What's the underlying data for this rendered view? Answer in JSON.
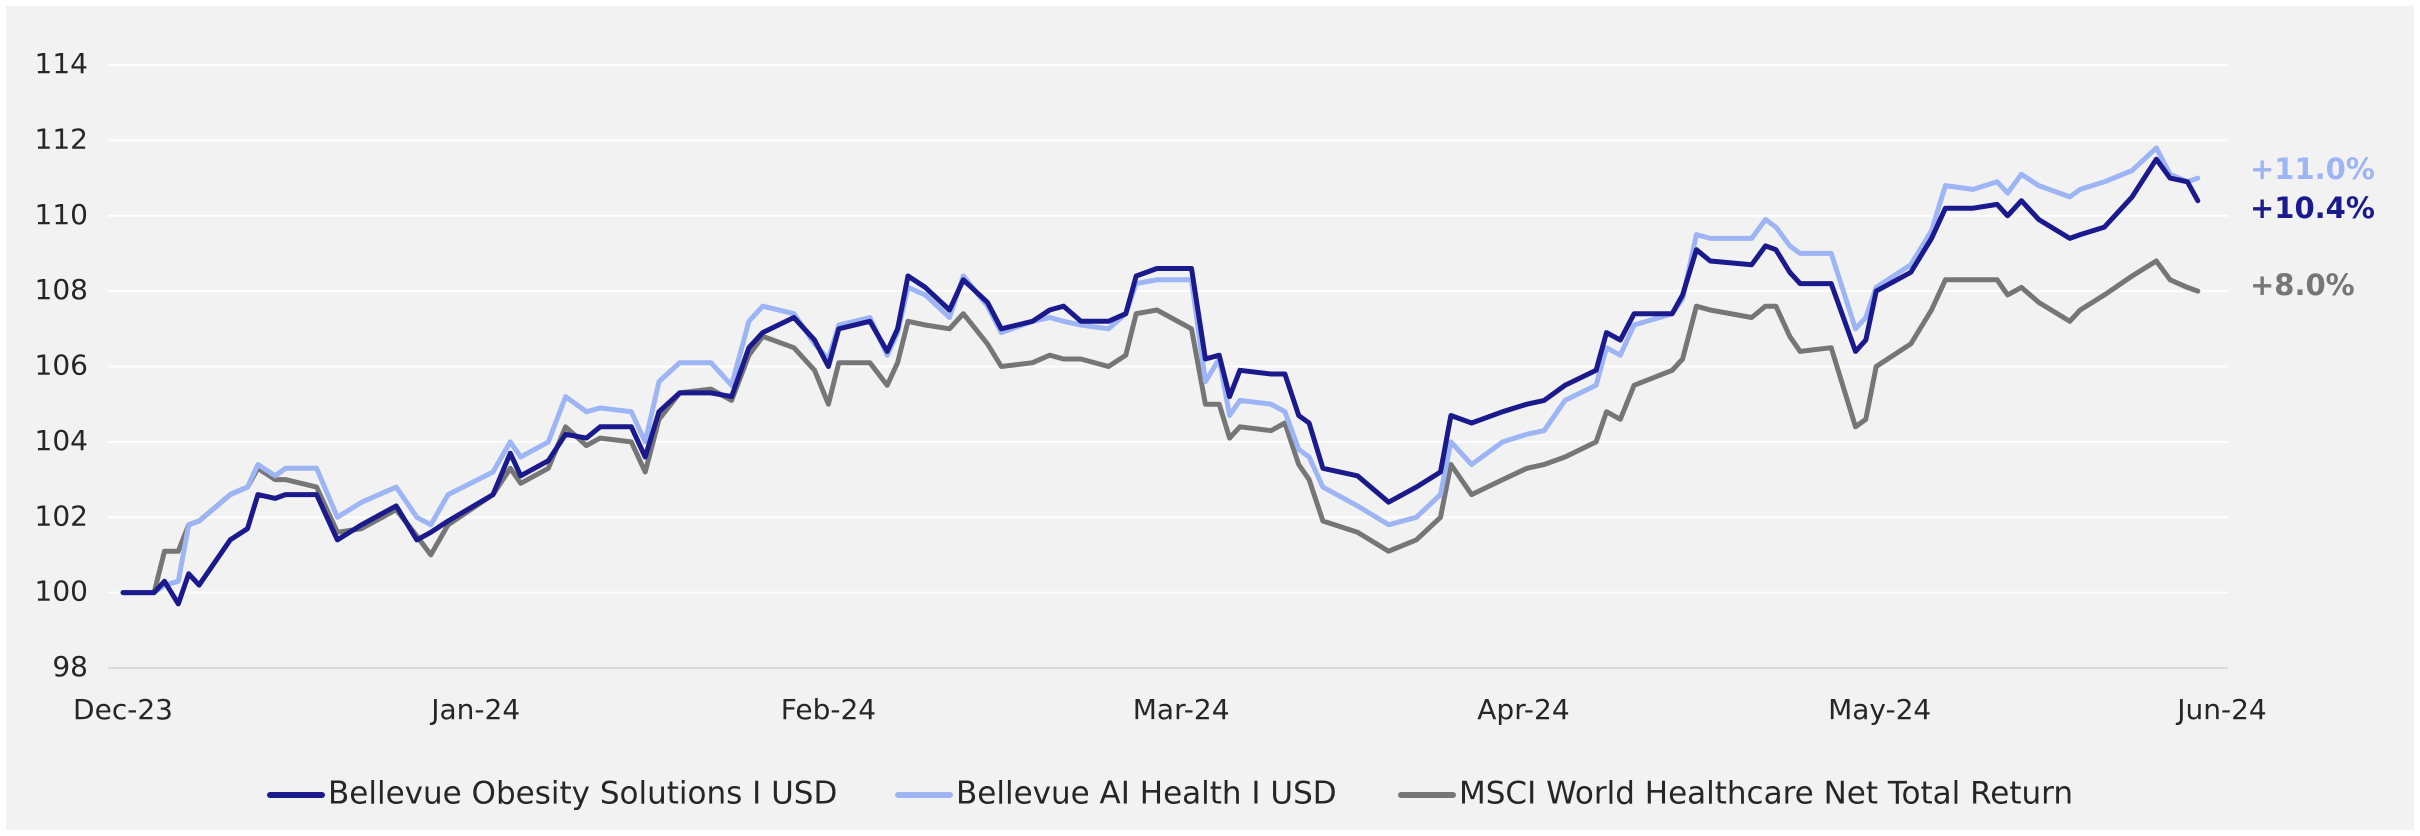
{
  "chart_data": {
    "type": "line",
    "x": [
      0,
      0.09,
      0.12,
      0.16,
      0.19,
      0.22,
      0.31,
      0.36,
      0.39,
      0.44,
      0.47,
      0.56,
      0.62,
      0.69,
      0.79,
      0.85,
      0.89,
      0.94,
      1.07,
      1.12,
      1.15,
      1.23,
      1.28,
      1.34,
      1.38,
      1.47,
      1.51,
      1.55,
      1.61,
      1.7,
      1.76,
      1.81,
      1.85,
      1.94,
      2.0,
      2.04,
      2.07,
      2.16,
      2.21,
      2.24,
      2.27,
      2.32,
      2.39,
      2.43,
      2.5,
      2.54,
      2.63,
      2.68,
      2.72,
      2.77,
      2.85,
      2.9,
      2.93,
      2.99,
      3.09,
      3.13,
      3.17,
      3.2,
      3.23,
      3.32,
      3.36,
      3.4,
      3.43,
      3.47,
      3.57,
      3.66,
      3.74,
      3.81,
      3.84,
      3.9,
      3.99,
      4.06,
      4.11,
      4.17,
      4.26,
      4.29,
      4.33,
      4.37,
      4.48,
      4.51,
      4.55,
      4.59,
      4.71,
      4.75,
      4.78,
      4.82,
      4.85,
      4.94,
      5.01,
      5.04,
      5.07,
      5.17,
      5.23,
      5.27,
      5.35,
      5.42,
      5.45,
      5.49,
      5.54,
      5.63,
      5.66,
      5.73,
      5.81,
      5.88,
      5.92,
      5.97,
      6.0
    ],
    "series": [
      {
        "name": "MSCI World Healthcare Net Total Return",
        "color": "#767676",
        "end_label": "+8.0%",
        "values": [
          100,
          100,
          101.1,
          101.1,
          101.8,
          101.9,
          102.6,
          102.8,
          103.3,
          103.0,
          103.0,
          102.8,
          101.6,
          101.7,
          102.2,
          101.5,
          101.0,
          101.8,
          102.6,
          103.3,
          102.9,
          103.3,
          104.4,
          103.9,
          104.1,
          104.0,
          103.2,
          104.6,
          105.3,
          105.4,
          105.1,
          106.3,
          106.8,
          106.5,
          105.9,
          105.0,
          106.1,
          106.1,
          105.5,
          106.1,
          107.2,
          107.1,
          107.0,
          107.4,
          106.6,
          106.0,
          106.1,
          106.3,
          106.2,
          106.2,
          106.0,
          106.3,
          107.4,
          107.5,
          107.0,
          105.0,
          105.0,
          104.1,
          104.4,
          104.3,
          104.5,
          103.4,
          103.0,
          101.9,
          101.6,
          101.1,
          101.4,
          102.0,
          103.4,
          102.6,
          103.0,
          103.3,
          103.4,
          103.6,
          104.0,
          104.8,
          104.6,
          105.5,
          105.9,
          106.2,
          107.6,
          107.5,
          107.3,
          107.6,
          107.6,
          106.8,
          106.4,
          106.5,
          104.4,
          104.6,
          106.0,
          106.6,
          107.5,
          108.3,
          108.3,
          108.3,
          107.9,
          108.1,
          107.7,
          107.2,
          107.5,
          107.9,
          108.4,
          108.8,
          108.3,
          108.1,
          108.0
        ]
      },
      {
        "name": "Bellevue AI Health I USD",
        "color": "#9db4f5",
        "end_label": "+11.0%",
        "values": [
          100,
          100,
          100.2,
          100.3,
          101.8,
          101.9,
          102.6,
          102.8,
          103.4,
          103.1,
          103.3,
          103.3,
          102.0,
          102.4,
          102.8,
          102.0,
          101.8,
          102.6,
          103.2,
          104.0,
          103.6,
          104.0,
          105.2,
          104.8,
          104.9,
          104.8,
          104.0,
          105.6,
          106.1,
          106.1,
          105.5,
          107.2,
          107.6,
          107.4,
          106.6,
          106.2,
          107.1,
          107.3,
          106.3,
          106.9,
          108.1,
          107.9,
          107.3,
          108.4,
          107.6,
          106.9,
          107.2,
          107.3,
          107.2,
          107.1,
          107.0,
          107.4,
          108.2,
          108.3,
          108.3,
          105.6,
          106.2,
          104.7,
          105.1,
          105.0,
          104.8,
          103.8,
          103.6,
          102.8,
          102.3,
          101.8,
          102.0,
          102.6,
          104.0,
          103.4,
          104.0,
          104.2,
          104.3,
          105.1,
          105.5,
          106.5,
          106.3,
          107.1,
          107.4,
          107.8,
          109.5,
          109.4,
          109.4,
          109.9,
          109.7,
          109.2,
          109.0,
          109.0,
          107.0,
          107.3,
          108.1,
          108.7,
          109.6,
          110.8,
          110.7,
          110.9,
          110.6,
          111.1,
          110.8,
          110.5,
          110.7,
          110.9,
          111.2,
          111.8,
          111.1,
          110.9,
          111.0
        ]
      },
      {
        "name": "Bellevue Obesity Solutions I USD",
        "color": "#1a1a8c",
        "end_label": "+10.4%",
        "values": [
          100,
          100,
          100.3,
          99.7,
          100.5,
          100.2,
          101.4,
          101.7,
          102.6,
          102.5,
          102.6,
          102.6,
          101.4,
          101.8,
          102.3,
          101.4,
          101.6,
          101.9,
          102.6,
          103.7,
          103.1,
          103.5,
          104.2,
          104.1,
          104.4,
          104.4,
          103.6,
          104.8,
          105.3,
          105.3,
          105.2,
          106.5,
          106.9,
          107.3,
          106.7,
          106.0,
          107.0,
          107.2,
          106.4,
          107.0,
          108.4,
          108.1,
          107.5,
          108.3,
          107.7,
          107.0,
          107.2,
          107.5,
          107.6,
          107.2,
          107.2,
          107.4,
          108.4,
          108.6,
          108.6,
          106.2,
          106.3,
          105.2,
          105.9,
          105.8,
          105.8,
          104.7,
          104.5,
          103.3,
          103.1,
          102.4,
          102.8,
          103.2,
          104.7,
          104.5,
          104.8,
          105.0,
          105.1,
          105.5,
          105.9,
          106.9,
          106.7,
          107.4,
          107.4,
          107.9,
          109.1,
          108.8,
          108.7,
          109.2,
          109.1,
          108.5,
          108.2,
          108.2,
          106.4,
          106.7,
          108.0,
          108.5,
          109.4,
          110.2,
          110.2,
          110.3,
          110.0,
          110.4,
          109.9,
          109.4,
          109.5,
          109.7,
          110.5,
          111.5,
          111.0,
          110.9,
          110.4
        ]
      }
    ],
    "legend_order": [
      2,
      1,
      0
    ],
    "xlim": [
      0,
      6.07
    ],
    "xticks": [
      {
        "value": 0,
        "label": "Dec-23"
      },
      {
        "value": 1.02,
        "label": "Jan-24"
      },
      {
        "value": 2.04,
        "label": "Feb-24"
      },
      {
        "value": 3.06,
        "label": "Mar-24"
      },
      {
        "value": 4.05,
        "label": "Apr-24"
      },
      {
        "value": 5.08,
        "label": "May-24"
      },
      {
        "value": 6.07,
        "label": "Jun-24"
      }
    ],
    "ylim": [
      98,
      114
    ],
    "yticks": [
      98,
      100,
      102,
      104,
      106,
      108,
      110,
      112,
      114
    ],
    "grid": true
  }
}
